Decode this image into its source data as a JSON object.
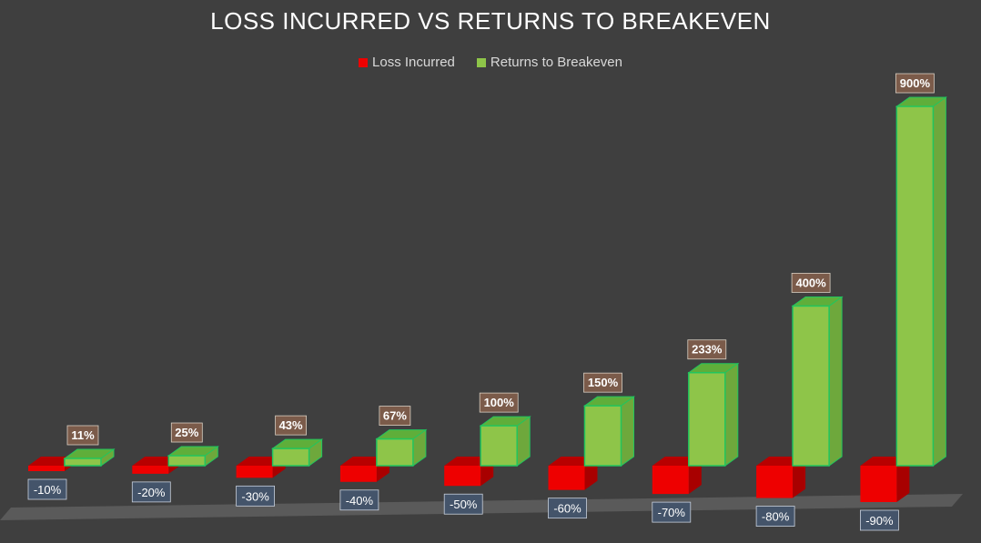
{
  "title": "LOSS INCURRED VS RETURNS TO BREAKEVEN",
  "colors": {
    "background": "#3f3f3f",
    "loss": "#ee0000",
    "returns": "#8ec549",
    "returns_edge": "#22c55e",
    "loss_label_bg": "#44546a",
    "returns_label_bg": "#7b5b4a",
    "floor": "#5a5a5a"
  },
  "legend": [
    {
      "label": "Loss Incurred",
      "color": "#ee0000"
    },
    {
      "label": "Returns to Breakeven",
      "color": "#8ec549"
    }
  ],
  "chart_data": {
    "type": "bar",
    "title": "LOSS INCURRED VS RETURNS TO BREAKEVEN",
    "legend_position": "top",
    "grid": false,
    "series": [
      {
        "name": "Loss Incurred",
        "values": [
          -10,
          -20,
          -30,
          -40,
          -50,
          -60,
          -70,
          -80,
          -90
        ],
        "labels": [
          "-10%",
          "-20%",
          "-30%",
          "-40%",
          "-50%",
          "-60%",
          "-70%",
          "-80%",
          "-90%"
        ]
      },
      {
        "name": "Returns to Breakeven",
        "values": [
          11,
          25,
          43,
          67,
          100,
          150,
          233,
          400,
          900
        ],
        "labels": [
          "11%",
          "25%",
          "43%",
          "67%",
          "100%",
          "150%",
          "233%",
          "400%",
          "900%"
        ]
      }
    ]
  }
}
